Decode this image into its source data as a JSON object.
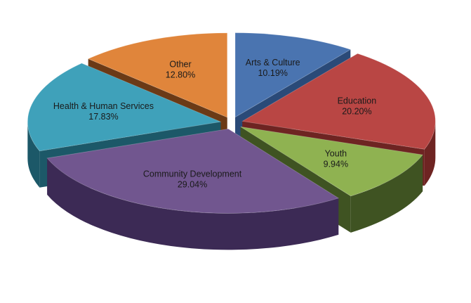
{
  "chart_data": {
    "type": "pie",
    "title": "",
    "style": "3d-exploded",
    "slices": [
      {
        "label": "Arts & Culture",
        "pct_label": "10.19%",
        "value": 10.19,
        "top_color": "#4A74B0",
        "side_color": "#2A4A78"
      },
      {
        "label": "Education",
        "pct_label": "20.20%",
        "value": 20.2,
        "top_color": "#B94644",
        "side_color": "#6E2422"
      },
      {
        "label": "Youth",
        "pct_label": "9.94%",
        "value": 9.94,
        "top_color": "#8FB251",
        "side_color": "#3F5322"
      },
      {
        "label": "Community Development",
        "pct_label": "29.04%",
        "value": 29.04,
        "top_color": "#71568F",
        "side_color": "#3C2A55"
      },
      {
        "label": "Health & Human Services",
        "pct_label": "17.83%",
        "value": 17.83,
        "top_color": "#3FA1BA",
        "side_color": "#1C5868"
      },
      {
        "label": "Other",
        "pct_label": "12.80%",
        "value": 12.8,
        "top_color": "#E0853B",
        "side_color": "#6B3A16"
      }
    ]
  }
}
